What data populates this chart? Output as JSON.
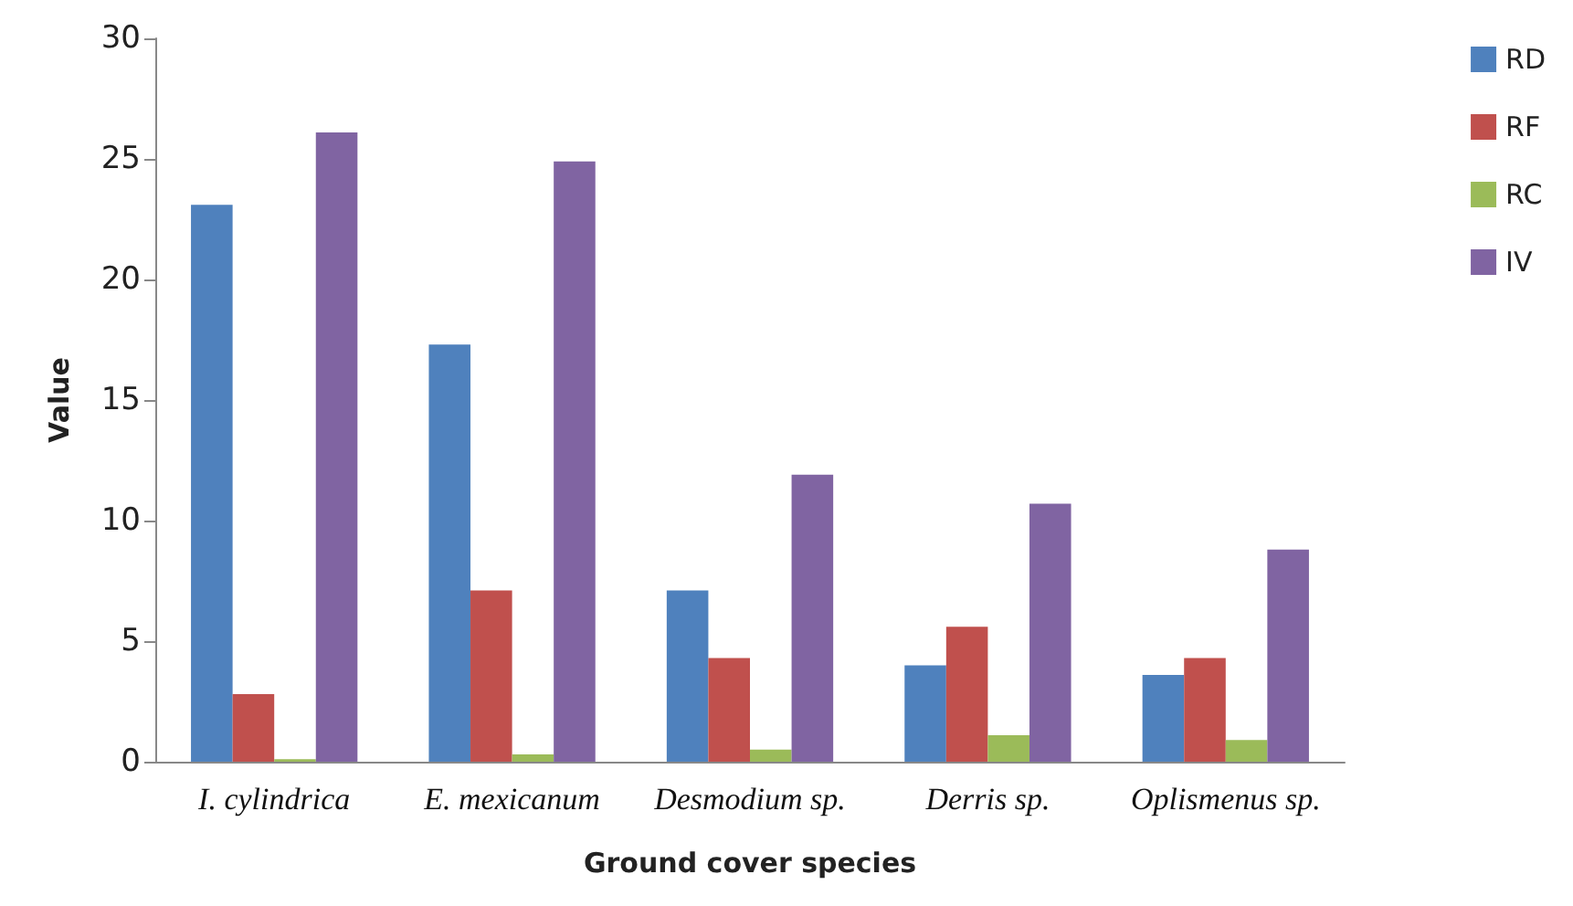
{
  "chart_data": {
    "type": "bar",
    "xlabel": "Ground cover species",
    "ylabel": "Value",
    "categories": [
      "I. cylindrica",
      "E. mexicanum",
      "Desmodium sp.",
      "Derris sp.",
      "Oplismenus sp."
    ],
    "series": [
      {
        "name": "RD",
        "color": "#4f81bd",
        "values": [
          23.1,
          17.3,
          7.1,
          4.0,
          3.6
        ]
      },
      {
        "name": "RF",
        "color": "#c0504d",
        "values": [
          2.8,
          7.1,
          4.3,
          5.6,
          4.3
        ]
      },
      {
        "name": "RC",
        "color": "#9bbb59",
        "values": [
          0.1,
          0.3,
          0.5,
          1.1,
          0.9
        ]
      },
      {
        "name": "IV",
        "color": "#8064a2",
        "values": [
          26.1,
          24.9,
          11.9,
          10.7,
          8.8
        ]
      }
    ],
    "ylim": [
      0,
      30
    ],
    "yticks": [
      0,
      5,
      10,
      15,
      20,
      25,
      30
    ],
    "grid": false,
    "legend": "right"
  }
}
